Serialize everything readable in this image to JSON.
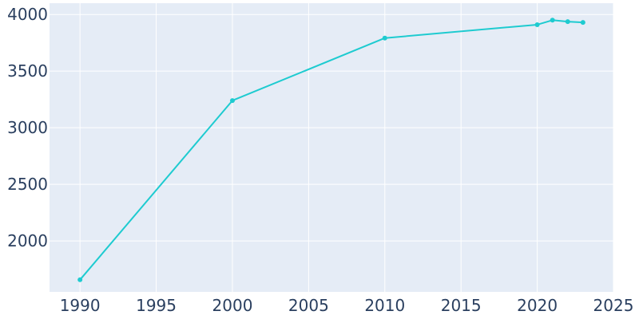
{
  "chart_data": {
    "type": "line",
    "title": "",
    "xlabel": "",
    "ylabel": "",
    "x": [
      1990,
      2000,
      2010,
      2020,
      2021,
      2022,
      2023
    ],
    "series": [
      {
        "values": [
          1657,
          3240,
          3792,
          3910,
          3950,
          3937,
          3930
        ]
      }
    ],
    "xlim": [
      1988,
      2025
    ],
    "ylim": [
      1550,
      4100
    ],
    "x_ticks": [
      1990,
      1995,
      2000,
      2005,
      2010,
      2015,
      2020,
      2025
    ],
    "y_ticks": [
      2000,
      2500,
      3000,
      3500,
      4000
    ],
    "grid": true,
    "legend": "none",
    "colors": {
      "line": "#1ecbd0",
      "plot_background": "#e5ecf6",
      "grid": "#ffffff",
      "text": "#2a3f5f"
    }
  }
}
